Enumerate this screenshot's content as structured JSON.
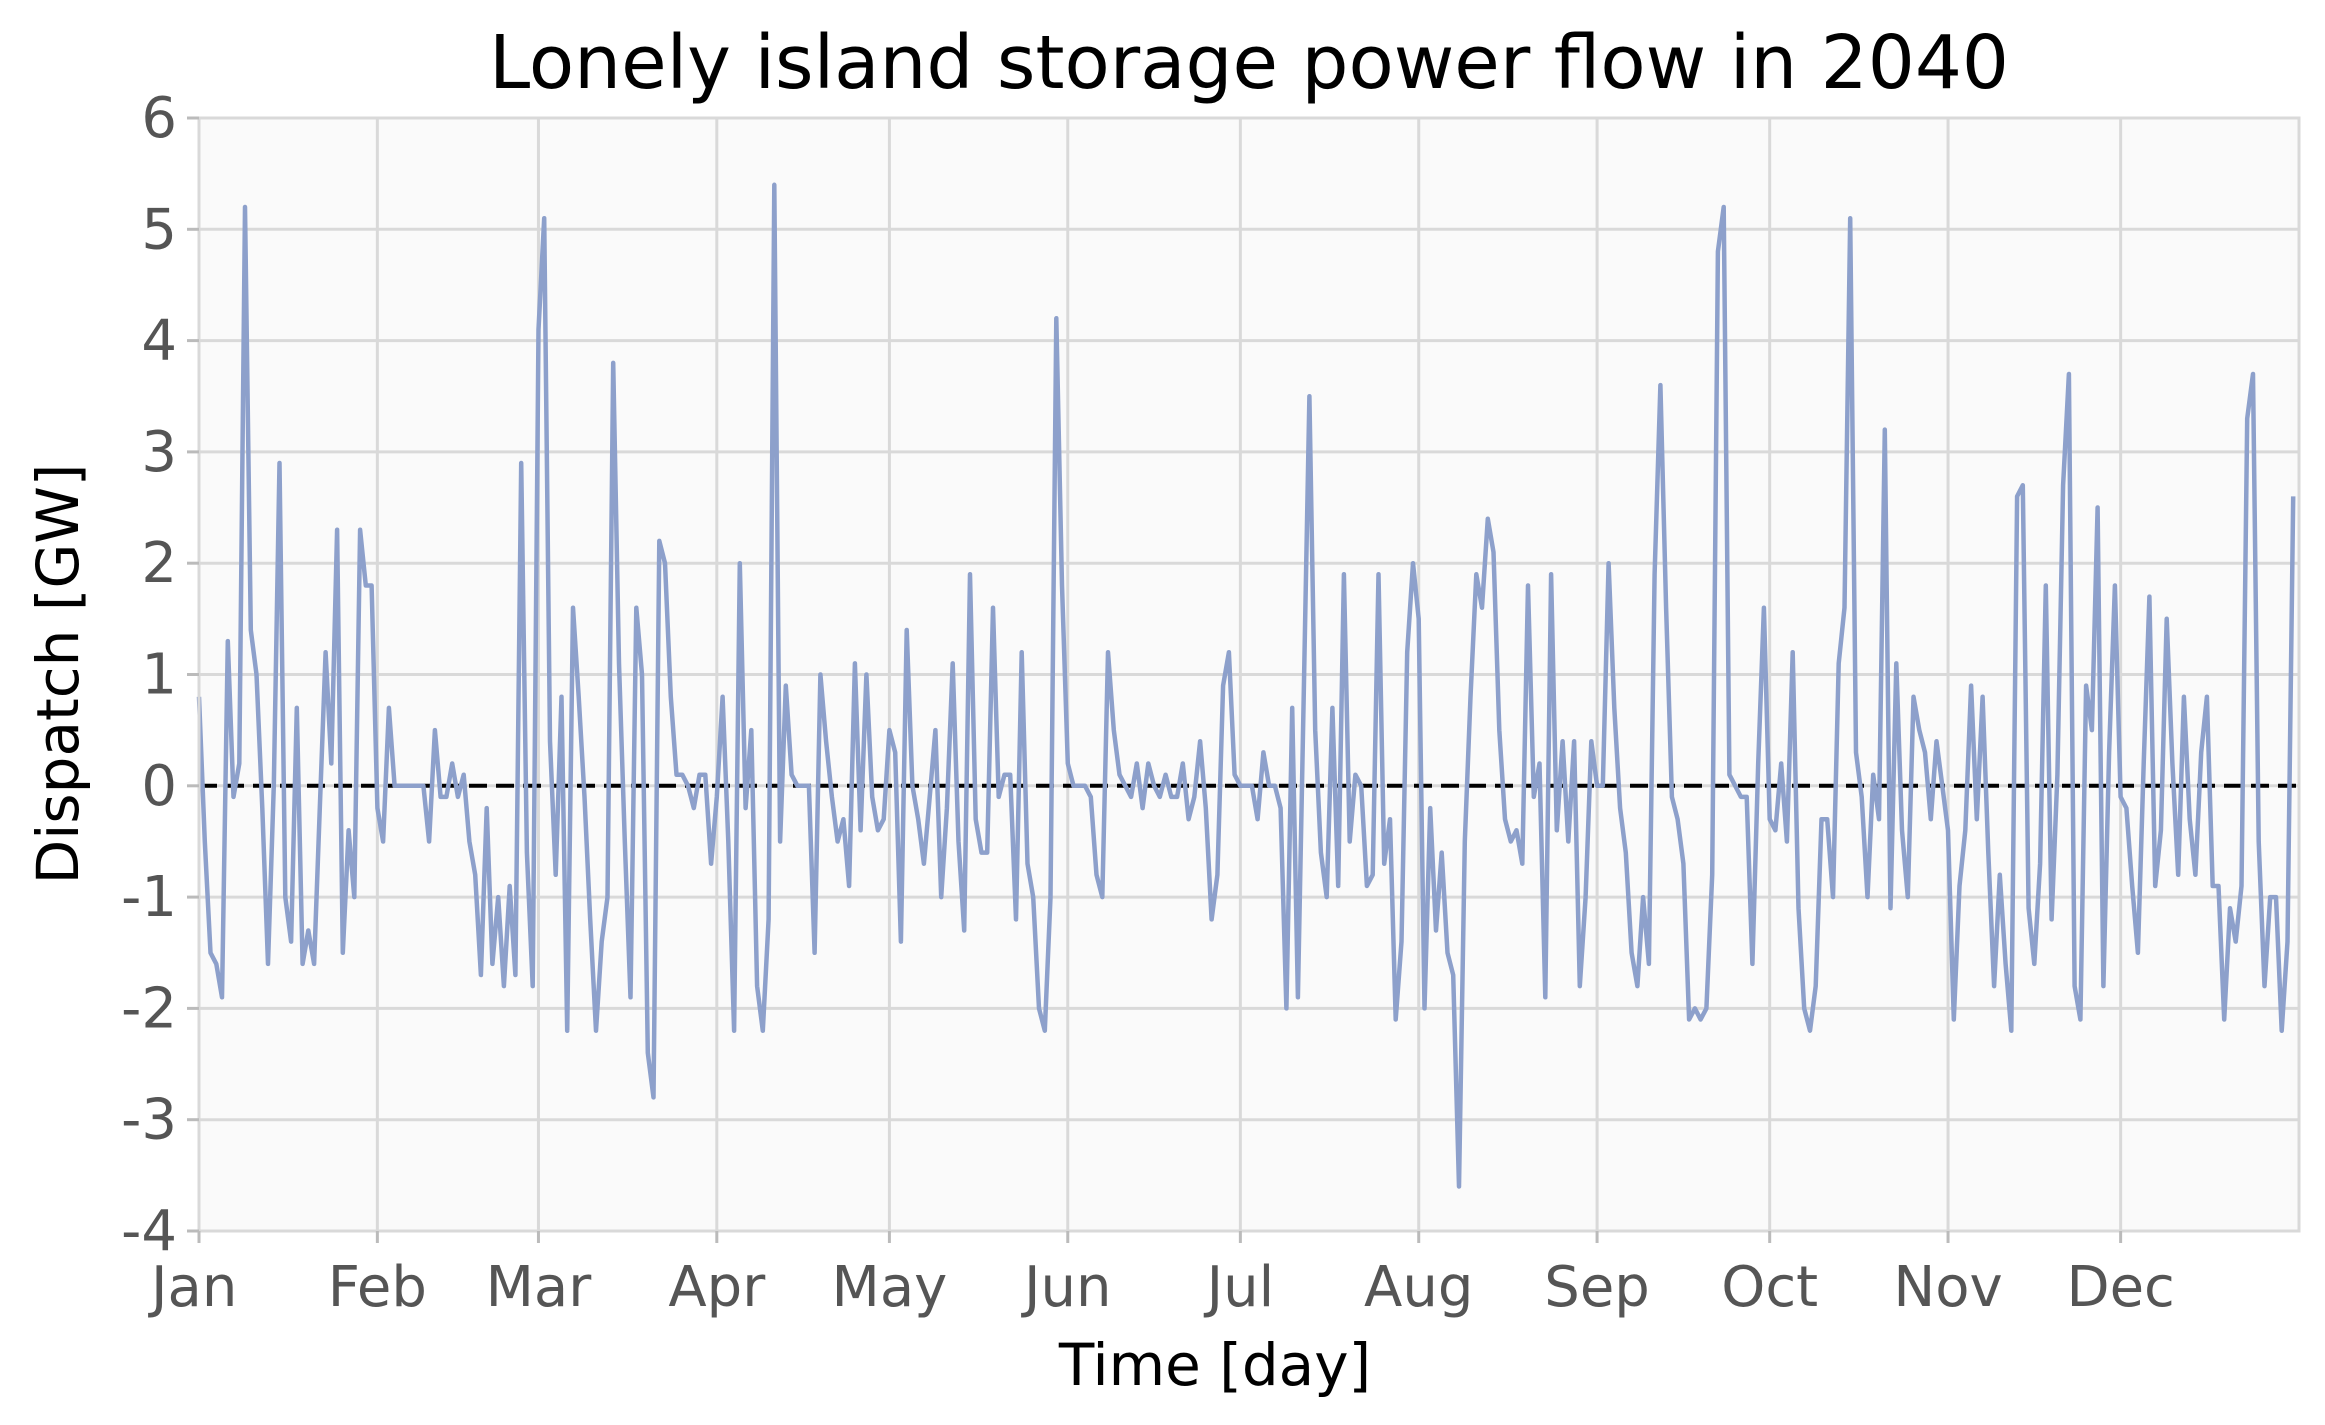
{
  "chart_data": {
    "type": "line",
    "title": "Lonely island storage power flow in 2040",
    "xlabel": "Time [day]",
    "ylabel": "Dispatch [GW]",
    "xlim": [
      0,
      365
    ],
    "ylim": [
      -4,
      6
    ],
    "x_ticks": [
      {
        "label": "Jan",
        "day": 0
      },
      {
        "label": "Feb",
        "day": 31
      },
      {
        "label": "Mar",
        "day": 59
      },
      {
        "label": "Apr",
        "day": 90
      },
      {
        "label": "May",
        "day": 120
      },
      {
        "label": "Jun",
        "day": 151
      },
      {
        "label": "Jul",
        "day": 181
      },
      {
        "label": "Aug",
        "day": 212
      },
      {
        "label": "Sep",
        "day": 243
      },
      {
        "label": "Oct",
        "day": 273
      },
      {
        "label": "Nov",
        "day": 304
      },
      {
        "label": "Dec",
        "day": 334
      }
    ],
    "y_ticks": [
      {
        "label": "6",
        "value": 6
      },
      {
        "label": "5",
        "value": 5
      },
      {
        "label": "4",
        "value": 4
      },
      {
        "label": "3",
        "value": 3
      },
      {
        "label": "2",
        "value": 2
      },
      {
        "label": "1",
        "value": 1
      },
      {
        "label": "0",
        "value": 0
      },
      {
        "label": "-1",
        "value": -1
      },
      {
        "label": "-2",
        "value": -2
      },
      {
        "label": "-3",
        "value": -3
      },
      {
        "label": "-4",
        "value": -4
      }
    ],
    "grid": true,
    "zero_line": {
      "value": 0,
      "style": "dashed",
      "color": "#000000"
    },
    "colors": {
      "series": "#8da0cb",
      "plot_background": "#fafafa",
      "grid": "#d9d9d9",
      "tick_text": "#555555"
    },
    "series": [
      {
        "x": [
          0,
          1,
          2,
          3,
          4,
          5,
          6,
          7,
          8,
          9,
          10,
          11,
          12,
          13,
          14,
          15,
          16,
          17,
          18,
          19,
          20,
          21,
          22,
          23,
          24,
          25,
          26,
          27,
          28,
          29,
          30,
          31,
          32,
          33,
          34,
          35,
          36,
          37,
          38,
          39,
          40,
          41,
          42,
          43,
          44,
          45,
          46,
          47,
          48,
          49,
          50,
          51,
          52,
          53,
          54,
          55,
          56,
          57,
          58,
          59,
          60,
          61,
          62,
          63,
          64,
          65,
          66,
          67,
          68,
          69,
          70,
          71,
          72,
          73,
          74,
          75,
          76,
          77,
          78,
          79,
          80,
          81,
          82,
          83,
          84,
          85,
          86,
          87,
          88,
          89,
          90,
          91,
          92,
          93,
          94,
          95,
          96,
          97,
          98,
          99,
          100,
          101,
          102,
          103,
          104,
          105,
          106,
          107,
          108,
          109,
          110,
          111,
          112,
          113,
          114,
          115,
          116,
          117,
          118,
          119,
          120,
          121,
          122,
          123,
          124,
          125,
          126,
          127,
          128,
          129,
          130,
          131,
          132,
          133,
          134,
          135,
          136,
          137,
          138,
          139,
          140,
          141,
          142,
          143,
          144,
          145,
          146,
          147,
          148,
          149,
          150,
          151,
          152,
          153,
          154,
          155,
          156,
          157,
          158,
          159,
          160,
          161,
          162,
          163,
          164,
          165,
          166,
          167,
          168,
          169,
          170,
          171,
          172,
          173,
          174,
          175,
          176,
          177,
          178,
          179,
          180,
          181,
          182,
          183,
          184,
          185,
          186,
          187,
          188,
          189,
          190,
          191,
          192,
          193,
          194,
          195,
          196,
          197,
          198,
          199,
          200,
          201,
          202,
          203,
          204,
          205,
          206,
          207,
          208,
          209,
          210,
          211,
          212,
          213,
          214,
          215,
          216,
          217,
          218,
          219,
          220,
          221,
          222,
          223,
          224,
          225,
          226,
          227,
          228,
          229,
          230,
          231,
          232,
          233,
          234,
          235,
          236,
          237,
          238,
          239,
          240,
          241,
          242,
          243,
          244,
          245,
          246,
          247,
          248,
          249,
          250,
          251,
          252,
          253,
          254,
          255,
          256,
          257,
          258,
          259,
          260,
          261,
          262,
          263,
          264,
          265,
          266,
          267,
          268,
          269,
          270,
          271,
          272,
          273,
          274,
          275,
          276,
          277,
          278,
          279,
          280,
          281,
          282,
          283,
          284,
          285,
          286,
          287,
          288,
          289,
          290,
          291,
          292,
          293,
          294,
          295,
          296,
          297,
          298,
          299,
          300,
          301,
          302,
          303,
          304,
          305,
          306,
          307,
          308,
          309,
          310,
          311,
          312,
          313,
          314,
          315,
          316,
          317,
          318,
          319,
          320,
          321,
          322,
          323,
          324,
          325,
          326,
          327,
          328,
          329,
          330,
          331,
          332,
          333,
          334,
          335,
          336,
          337,
          338,
          339,
          340,
          341,
          342,
          343,
          344,
          345,
          346,
          347,
          348,
          349,
          350,
          351,
          352,
          353,
          354,
          355,
          356,
          357,
          358,
          359,
          360,
          361,
          362,
          363,
          364
        ],
        "y": [
          0.8,
          -0.5,
          -1.5,
          -1.6,
          -1.9,
          1.3,
          -0.1,
          0.2,
          5.2,
          1.4,
          1.0,
          -0.2,
          -1.6,
          0.0,
          2.9,
          -1.0,
          -1.4,
          0.7,
          -1.6,
          -1.3,
          -1.6,
          -0.2,
          1.2,
          0.2,
          2.3,
          -1.5,
          -0.4,
          -1.0,
          2.3,
          1.8,
          1.8,
          -0.2,
          -0.5,
          0.7,
          0.0,
          0.0,
          0.0,
          0.0,
          0.0,
          0.0,
          -0.5,
          0.5,
          -0.1,
          -0.1,
          0.2,
          -0.1,
          0.1,
          -0.5,
          -0.8,
          -1.7,
          -0.2,
          -1.6,
          -1.0,
          -1.8,
          -0.9,
          -1.7,
          2.9,
          -0.6,
          -1.8,
          4.1,
          5.1,
          0.4,
          -0.8,
          0.8,
          -2.2,
          1.6,
          0.8,
          -0.1,
          -1.2,
          -2.2,
          -1.4,
          -1.0,
          3.8,
          1.1,
          -0.5,
          -1.9,
          1.6,
          1.0,
          -2.4,
          -2.8,
          2.2,
          2.0,
          0.8,
          0.1,
          0.1,
          0.0,
          -0.2,
          0.1,
          0.1,
          -0.7,
          -0.1,
          0.8,
          -0.5,
          -2.2,
          2.0,
          -0.2,
          0.5,
          -1.8,
          -2.2,
          -1.2,
          5.4,
          -0.5,
          0.9,
          0.1,
          0.0,
          0.0,
          0.0,
          -1.5,
          1.0,
          0.4,
          -0.1,
          -0.5,
          -0.3,
          -0.9,
          1.1,
          -0.4,
          1.0,
          -0.1,
          -0.4,
          -0.3,
          0.5,
          0.3,
          -1.4,
          1.4,
          0.0,
          -0.3,
          -0.7,
          -0.1,
          0.5,
          -1.0,
          -0.2,
          1.1,
          -0.5,
          -1.3,
          1.9,
          -0.3,
          -0.6,
          -0.6,
          1.6,
          -0.1,
          0.1,
          0.1,
          -1.2,
          1.2,
          -0.7,
          -1.0,
          -2.0,
          -2.2,
          -1.0,
          4.2,
          1.8,
          0.2,
          0.0,
          0.0,
          0.0,
          -0.1,
          -0.8,
          -1.0,
          1.2,
          0.5,
          0.1,
          0.0,
          -0.1,
          0.2,
          -0.2,
          0.2,
          0.0,
          -0.1,
          0.1,
          -0.1,
          -0.1,
          0.2,
          -0.3,
          -0.1,
          0.4,
          -0.2,
          -1.2,
          -0.8,
          0.9,
          1.2,
          0.1,
          0.0,
          0.0,
          0.0,
          -0.3,
          0.3,
          0.0,
          0.0,
          -0.2,
          -2.0,
          0.7,
          -1.9,
          0.8,
          3.5,
          0.5,
          -0.6,
          -1.0,
          0.7,
          -0.9,
          1.9,
          -0.5,
          0.1,
          0.0,
          -0.9,
          -0.8,
          1.9,
          -0.7,
          -0.3,
          -2.1,
          -1.4,
          1.2,
          2.0,
          1.5,
          -2.0,
          -0.2,
          -1.3,
          -0.6,
          -1.5,
          -1.7,
          -3.6,
          -0.5,
          0.8,
          1.9,
          1.6,
          2.4,
          2.1,
          0.5,
          -0.3,
          -0.5,
          -0.4,
          -0.7,
          1.8,
          -0.1,
          0.2,
          -1.9,
          1.9,
          -0.4,
          0.4,
          -0.5,
          0.4,
          -1.8,
          -1.0,
          0.4,
          0.0,
          0.0,
          2.0,
          0.7,
          -0.2,
          -0.6,
          -1.5,
          -1.8,
          -1.0,
          -1.6,
          1.9,
          3.6,
          1.6,
          -0.1,
          -0.3,
          -0.7,
          -2.1,
          -2.0,
          -2.1,
          -2.0,
          -0.8,
          4.8,
          5.2,
          0.1,
          0.0,
          -0.1,
          -0.1,
          -1.6,
          0.2,
          1.6,
          -0.3,
          -0.4,
          0.2,
          -0.5,
          1.2,
          -1.1,
          -2.0,
          -2.2,
          -1.8,
          -0.3,
          -0.3,
          -1.0,
          1.1,
          1.6,
          5.1,
          0.3,
          -0.1,
          -1.0,
          0.1,
          -0.3,
          3.2,
          -1.1,
          1.1,
          -0.4,
          -1.0,
          0.8,
          0.5,
          0.3,
          -0.3,
          0.4,
          0.0,
          -0.4,
          -2.1,
          -0.9,
          -0.4,
          0.9,
          -0.3,
          0.8,
          -0.6,
          -1.8,
          -0.8,
          -1.6,
          -2.2,
          2.6,
          2.7,
          -1.1,
          -1.6,
          -0.7,
          1.8,
          -1.2,
          0.1,
          2.7,
          3.7,
          -1.8,
          -2.1,
          0.9,
          0.5,
          2.5,
          -1.8,
          0.3,
          1.8,
          -0.1,
          -0.2,
          -0.9,
          -1.5,
          0.2,
          1.7,
          -0.9,
          -0.4,
          1.5,
          0.2,
          -0.8,
          0.8,
          -0.3,
          -0.8,
          0.3,
          0.8,
          -0.9,
          -0.9,
          -2.1,
          -1.1,
          -1.4,
          -0.9,
          3.3,
          3.7,
          -0.5,
          -1.8,
          -1.0,
          -1.0,
          -2.2,
          -1.4,
          2.6
        ]
      }
    ]
  }
}
